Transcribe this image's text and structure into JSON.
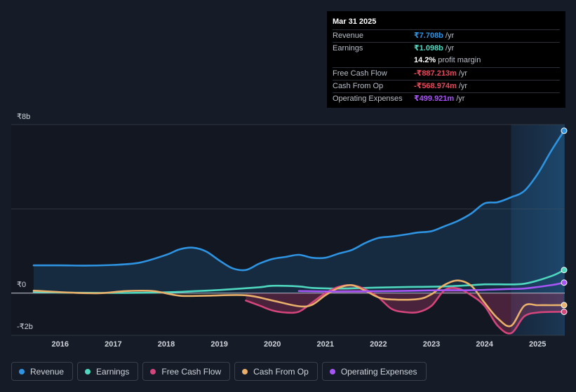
{
  "chart_data": {
    "type": "area",
    "y_axis": {
      "top_label": "₹8b",
      "zero_label": "₹0",
      "bottom_label": "-₹2b",
      "ylim": [
        -2,
        8
      ],
      "unit": "₹b"
    },
    "x_ticks": [
      "2016",
      "2017",
      "2018",
      "2019",
      "2020",
      "2021",
      "2022",
      "2023",
      "2024",
      "2025"
    ],
    "xlim": [
      2015.25,
      2025.25
    ],
    "forecast_shade_start": 2024.25,
    "series": [
      {
        "name": "Revenue",
        "color": "#2e93e0",
        "points": [
          [
            2015.25,
            1.32
          ],
          [
            2015.75,
            1.32
          ],
          [
            2016.25,
            1.31
          ],
          [
            2016.75,
            1.34
          ],
          [
            2017.25,
            1.45
          ],
          [
            2017.75,
            1.82
          ],
          [
            2018.0,
            2.08
          ],
          [
            2018.25,
            2.16
          ],
          [
            2018.5,
            1.98
          ],
          [
            2018.75,
            1.55
          ],
          [
            2019.0,
            1.18
          ],
          [
            2019.25,
            1.1
          ],
          [
            2019.5,
            1.4
          ],
          [
            2019.75,
            1.62
          ],
          [
            2020.0,
            1.72
          ],
          [
            2020.25,
            1.82
          ],
          [
            2020.5,
            1.68
          ],
          [
            2020.75,
            1.68
          ],
          [
            2021.0,
            1.88
          ],
          [
            2021.25,
            2.05
          ],
          [
            2021.5,
            2.38
          ],
          [
            2021.75,
            2.62
          ],
          [
            2022.0,
            2.69
          ],
          [
            2022.25,
            2.78
          ],
          [
            2022.5,
            2.88
          ],
          [
            2022.75,
            2.94
          ],
          [
            2023.0,
            3.18
          ],
          [
            2023.25,
            3.43
          ],
          [
            2023.5,
            3.78
          ],
          [
            2023.75,
            4.26
          ],
          [
            2024.0,
            4.32
          ],
          [
            2024.25,
            4.55
          ],
          [
            2024.5,
            4.85
          ],
          [
            2024.75,
            5.65
          ],
          [
            2025.0,
            6.72
          ],
          [
            2025.25,
            7.708
          ]
        ]
      },
      {
        "name": "Earnings",
        "color": "#4fd8c0",
        "points": [
          [
            2015.25,
            0.06
          ],
          [
            2016.0,
            0.02
          ],
          [
            2017.0,
            0.01
          ],
          [
            2017.75,
            0.04
          ],
          [
            2018.25,
            0.09
          ],
          [
            2018.75,
            0.15
          ],
          [
            2019.5,
            0.28
          ],
          [
            2019.75,
            0.35
          ],
          [
            2020.25,
            0.32
          ],
          [
            2020.5,
            0.25
          ],
          [
            2021.0,
            0.22
          ],
          [
            2021.5,
            0.25
          ],
          [
            2022.0,
            0.28
          ],
          [
            2022.5,
            0.3
          ],
          [
            2023.0,
            0.32
          ],
          [
            2023.5,
            0.38
          ],
          [
            2023.75,
            0.42
          ],
          [
            2024.0,
            0.42
          ],
          [
            2024.5,
            0.45
          ],
          [
            2025.0,
            0.8
          ],
          [
            2025.25,
            1.098
          ]
        ]
      },
      {
        "name": "Free Cash Flow",
        "color": "#d4457c",
        "points": [
          [
            2019.25,
            -0.35
          ],
          [
            2019.5,
            -0.58
          ],
          [
            2019.75,
            -0.82
          ],
          [
            2020.0,
            -0.92
          ],
          [
            2020.25,
            -0.88
          ],
          [
            2020.5,
            -0.45
          ],
          [
            2020.75,
            0.0
          ],
          [
            2021.0,
            0.3
          ],
          [
            2021.25,
            0.38
          ],
          [
            2021.5,
            0.18
          ],
          [
            2021.75,
            -0.2
          ],
          [
            2022.0,
            -0.75
          ],
          [
            2022.25,
            -0.9
          ],
          [
            2022.5,
            -0.9
          ],
          [
            2022.75,
            -0.6
          ],
          [
            2023.0,
            0.15
          ],
          [
            2023.25,
            0.22
          ],
          [
            2023.5,
            -0.1
          ],
          [
            2023.75,
            -0.6
          ],
          [
            2024.0,
            -1.55
          ],
          [
            2024.25,
            -1.9
          ],
          [
            2024.5,
            -1.1
          ],
          [
            2024.75,
            -0.92
          ],
          [
            2025.0,
            -0.89
          ],
          [
            2025.25,
            -0.887
          ]
        ]
      },
      {
        "name": "Cash From Op",
        "color": "#e8b06a",
        "points": [
          [
            2015.25,
            0.12
          ],
          [
            2016.0,
            0.02
          ],
          [
            2016.5,
            0.0
          ],
          [
            2017.0,
            0.1
          ],
          [
            2017.5,
            0.1
          ],
          [
            2018.0,
            -0.12
          ],
          [
            2018.5,
            -0.12
          ],
          [
            2019.25,
            -0.1
          ],
          [
            2019.75,
            -0.35
          ],
          [
            2020.25,
            -0.62
          ],
          [
            2020.5,
            -0.55
          ],
          [
            2020.75,
            -0.1
          ],
          [
            2021.0,
            0.25
          ],
          [
            2021.25,
            0.38
          ],
          [
            2021.5,
            0.12
          ],
          [
            2021.75,
            -0.2
          ],
          [
            2022.0,
            -0.3
          ],
          [
            2022.5,
            -0.28
          ],
          [
            2022.75,
            -0.05
          ],
          [
            2023.0,
            0.4
          ],
          [
            2023.25,
            0.6
          ],
          [
            2023.5,
            0.35
          ],
          [
            2023.75,
            -0.45
          ],
          [
            2024.0,
            -1.2
          ],
          [
            2024.25,
            -1.55
          ],
          [
            2024.5,
            -0.6
          ],
          [
            2024.75,
            -0.57
          ],
          [
            2025.0,
            -0.57
          ],
          [
            2025.25,
            -0.569
          ]
        ]
      },
      {
        "name": "Operating Expenses",
        "color": "#a855f7",
        "points": [
          [
            2020.25,
            0.1
          ],
          [
            2021.0,
            0.08
          ],
          [
            2022.0,
            0.1
          ],
          [
            2022.5,
            0.12
          ],
          [
            2023.0,
            0.14
          ],
          [
            2023.5,
            0.14
          ],
          [
            2024.0,
            0.18
          ],
          [
            2024.25,
            0.2
          ],
          [
            2024.5,
            0.22
          ],
          [
            2025.0,
            0.38
          ],
          [
            2025.25,
            0.5
          ]
        ]
      }
    ]
  },
  "tooltip": {
    "date": "Mar 31 2025",
    "rows": [
      {
        "label": "Revenue",
        "value": "₹7.708b",
        "unit": "/yr",
        "color": "#2e93e0"
      },
      {
        "label": "Earnings",
        "value": "₹1.098b",
        "unit": "/yr",
        "color": "#4fd8c0"
      },
      {
        "label": "",
        "value": "14.2%",
        "unit": "profit margin",
        "color": "#ffffff"
      },
      {
        "label": "Free Cash Flow",
        "value": "-₹887.213m",
        "unit": "/yr",
        "color": "#e8495a"
      },
      {
        "label": "Cash From Op",
        "value": "-₹568.974m",
        "unit": "/yr",
        "color": "#e8495a"
      },
      {
        "label": "Operating Expenses",
        "value": "₹499.921m",
        "unit": "/yr",
        "color": "#a855f7"
      }
    ]
  },
  "legend": [
    {
      "label": "Revenue",
      "color": "#2e93e0"
    },
    {
      "label": "Earnings",
      "color": "#4fd8c0"
    },
    {
      "label": "Free Cash Flow",
      "color": "#d4457c"
    },
    {
      "label": "Cash From Op",
      "color": "#e8b06a"
    },
    {
      "label": "Operating Expenses",
      "color": "#a855f7"
    }
  ]
}
